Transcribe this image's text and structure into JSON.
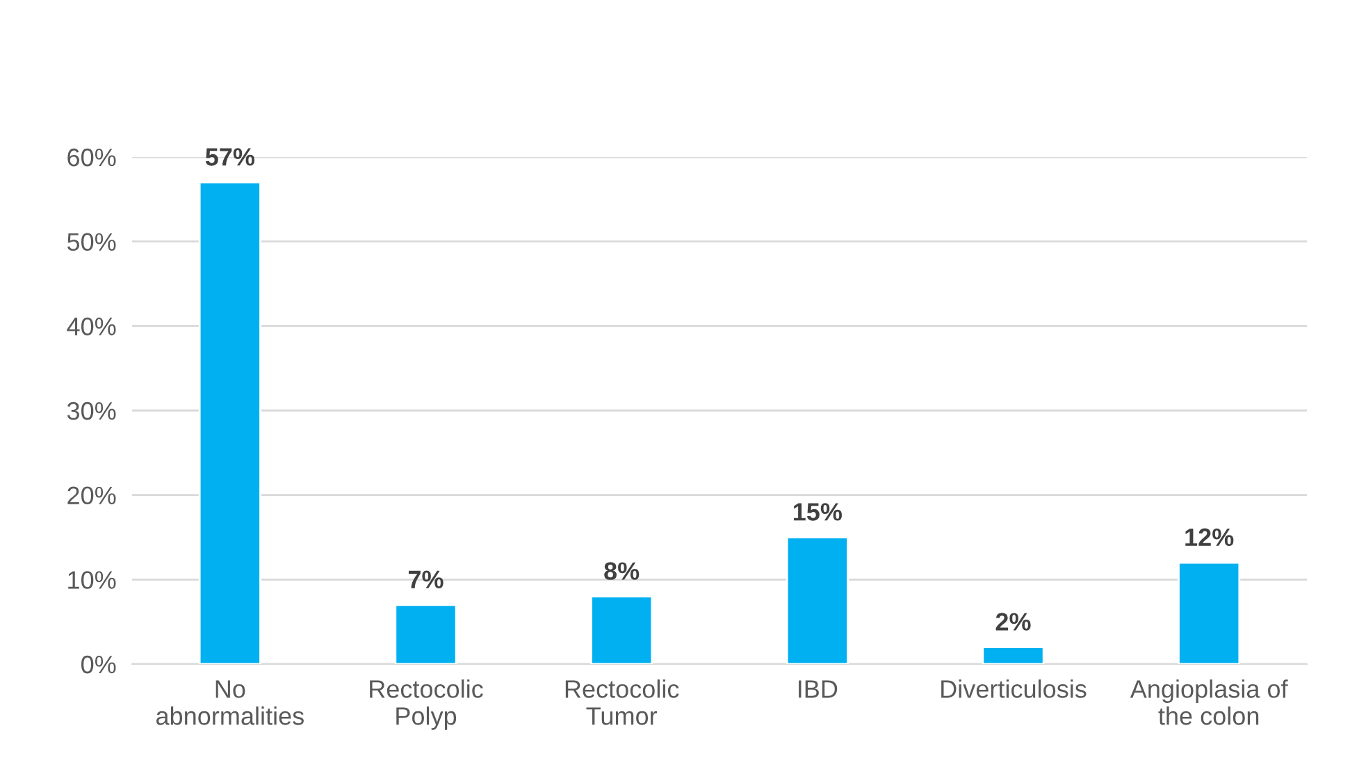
{
  "chart_data": {
    "type": "bar",
    "categories": [
      "No\nabnormalities",
      "Rectocolic\nPolyp",
      "Rectocolic\nTumor",
      "IBD",
      "Diverticulosis",
      "Angioplasia of\nthe colon"
    ],
    "values": [
      57,
      7,
      8,
      15,
      2,
      12
    ],
    "value_labels": [
      "57%",
      "7%",
      "8%",
      "15%",
      "2%",
      "12%"
    ],
    "color": "#00b0f0",
    "ylim": [
      0,
      60
    ],
    "yticks": [
      {
        "value": 0,
        "label": "0%"
      },
      {
        "value": 10,
        "label": "10%"
      },
      {
        "value": 20,
        "label": "20%"
      },
      {
        "value": 30,
        "label": "30%"
      },
      {
        "value": 40,
        "label": "40%"
      },
      {
        "value": 50,
        "label": "50%"
      },
      {
        "value": 60,
        "label": "60%"
      }
    ],
    "grid": "y",
    "legend": false
  }
}
